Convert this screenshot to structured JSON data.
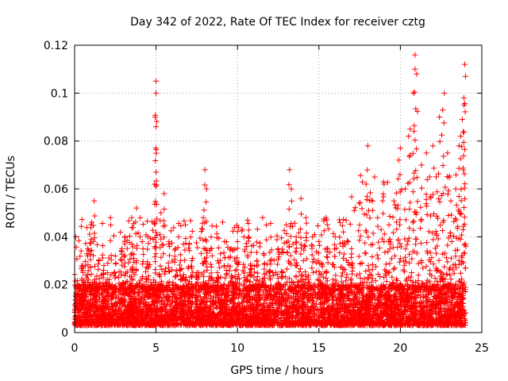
{
  "chart_data": {
    "type": "scatter",
    "title": "Day 342 of 2022, Rate Of TEC Index for receiver cztg",
    "xlabel": "GPS time / hours",
    "ylabel": "ROTI / TECUs",
    "xlim": [
      0,
      25
    ],
    "ylim": [
      0,
      0.12
    ],
    "x_ticks": [
      0,
      5,
      10,
      15,
      20,
      25
    ],
    "x_tick_labels": [
      "0",
      "5",
      "10",
      "15",
      "20",
      "25"
    ],
    "y_ticks": [
      0,
      0.02,
      0.04,
      0.06,
      0.08,
      0.1,
      0.12
    ],
    "y_tick_labels": [
      "0",
      "0.02",
      "0.04",
      "0.06",
      "0.08",
      "0.1",
      "0.12"
    ],
    "grid": true,
    "marker": "+",
    "color": "#ff0000",
    "series": [
      {
        "name": "ROTI",
        "dense_band": {
          "x_range": [
            0,
            24
          ],
          "y_range": [
            0.003,
            0.02
          ]
        },
        "points": [
          [
            0.2,
            0.02
          ],
          [
            0.5,
            0.028
          ],
          [
            0.8,
            0.035
          ],
          [
            1.0,
            0.045
          ],
          [
            1.2,
            0.055
          ],
          [
            1.5,
            0.03
          ],
          [
            1.8,
            0.028
          ],
          [
            2.2,
            0.048
          ],
          [
            2.5,
            0.032
          ],
          [
            2.9,
            0.035
          ],
          [
            3.1,
            0.04
          ],
          [
            3.5,
            0.048
          ],
          [
            3.8,
            0.052
          ],
          [
            4.2,
            0.035
          ],
          [
            4.5,
            0.04
          ],
          [
            4.9,
            0.062
          ],
          [
            5.0,
            0.105
          ],
          [
            5.0,
            0.1
          ],
          [
            4.95,
            0.09
          ],
          [
            5.0,
            0.086
          ],
          [
            5.3,
            0.05
          ],
          [
            5.5,
            0.058
          ],
          [
            5.8,
            0.038
          ],
          [
            6.2,
            0.035
          ],
          [
            6.5,
            0.03
          ],
          [
            6.8,
            0.045
          ],
          [
            7.2,
            0.03
          ],
          [
            7.5,
            0.025
          ],
          [
            7.9,
            0.048
          ],
          [
            8.0,
            0.068
          ],
          [
            8.1,
            0.06
          ],
          [
            8.4,
            0.035
          ],
          [
            8.8,
            0.03
          ],
          [
            9.2,
            0.038
          ],
          [
            9.6,
            0.035
          ],
          [
            10.0,
            0.038
          ],
          [
            10.4,
            0.04
          ],
          [
            10.8,
            0.028
          ],
          [
            11.2,
            0.03
          ],
          [
            11.6,
            0.033
          ],
          [
            12.0,
            0.03
          ],
          [
            12.5,
            0.035
          ],
          [
            13.0,
            0.045
          ],
          [
            13.2,
            0.068
          ],
          [
            13.3,
            0.06
          ],
          [
            13.6,
            0.04
          ],
          [
            13.9,
            0.056
          ],
          [
            14.2,
            0.048
          ],
          [
            14.6,
            0.04
          ],
          [
            15.0,
            0.038
          ],
          [
            15.5,
            0.035
          ],
          [
            16.0,
            0.04
          ],
          [
            16.5,
            0.042
          ],
          [
            17.0,
            0.035
          ],
          [
            17.5,
            0.045
          ],
          [
            17.9,
            0.062
          ],
          [
            18.0,
            0.078
          ],
          [
            18.3,
            0.055
          ],
          [
            18.6,
            0.048
          ],
          [
            19.0,
            0.062
          ],
          [
            19.3,
            0.045
          ],
          [
            19.6,
            0.055
          ],
          [
            19.9,
            0.072
          ],
          [
            20.0,
            0.077
          ],
          [
            20.3,
            0.06
          ],
          [
            20.5,
            0.082
          ],
          [
            20.6,
            0.085
          ],
          [
            20.8,
            0.1
          ],
          [
            20.9,
            0.116
          ],
          [
            20.9,
            0.11
          ],
          [
            21.0,
            0.108
          ],
          [
            21.3,
            0.07
          ],
          [
            21.6,
            0.075
          ],
          [
            21.8,
            0.065
          ],
          [
            22.0,
            0.078
          ],
          [
            22.2,
            0.065
          ],
          [
            22.4,
            0.09
          ],
          [
            22.6,
            0.093
          ],
          [
            22.7,
            0.1
          ],
          [
            22.9,
            0.075
          ],
          [
            23.1,
            0.055
          ],
          [
            23.4,
            0.06
          ],
          [
            23.6,
            0.078
          ],
          [
            23.7,
            0.082
          ],
          [
            23.8,
            0.089
          ],
          [
            23.9,
            0.095
          ],
          [
            23.9,
            0.098
          ],
          [
            24.0,
            0.107
          ],
          [
            23.95,
            0.112
          ]
        ]
      }
    ]
  }
}
